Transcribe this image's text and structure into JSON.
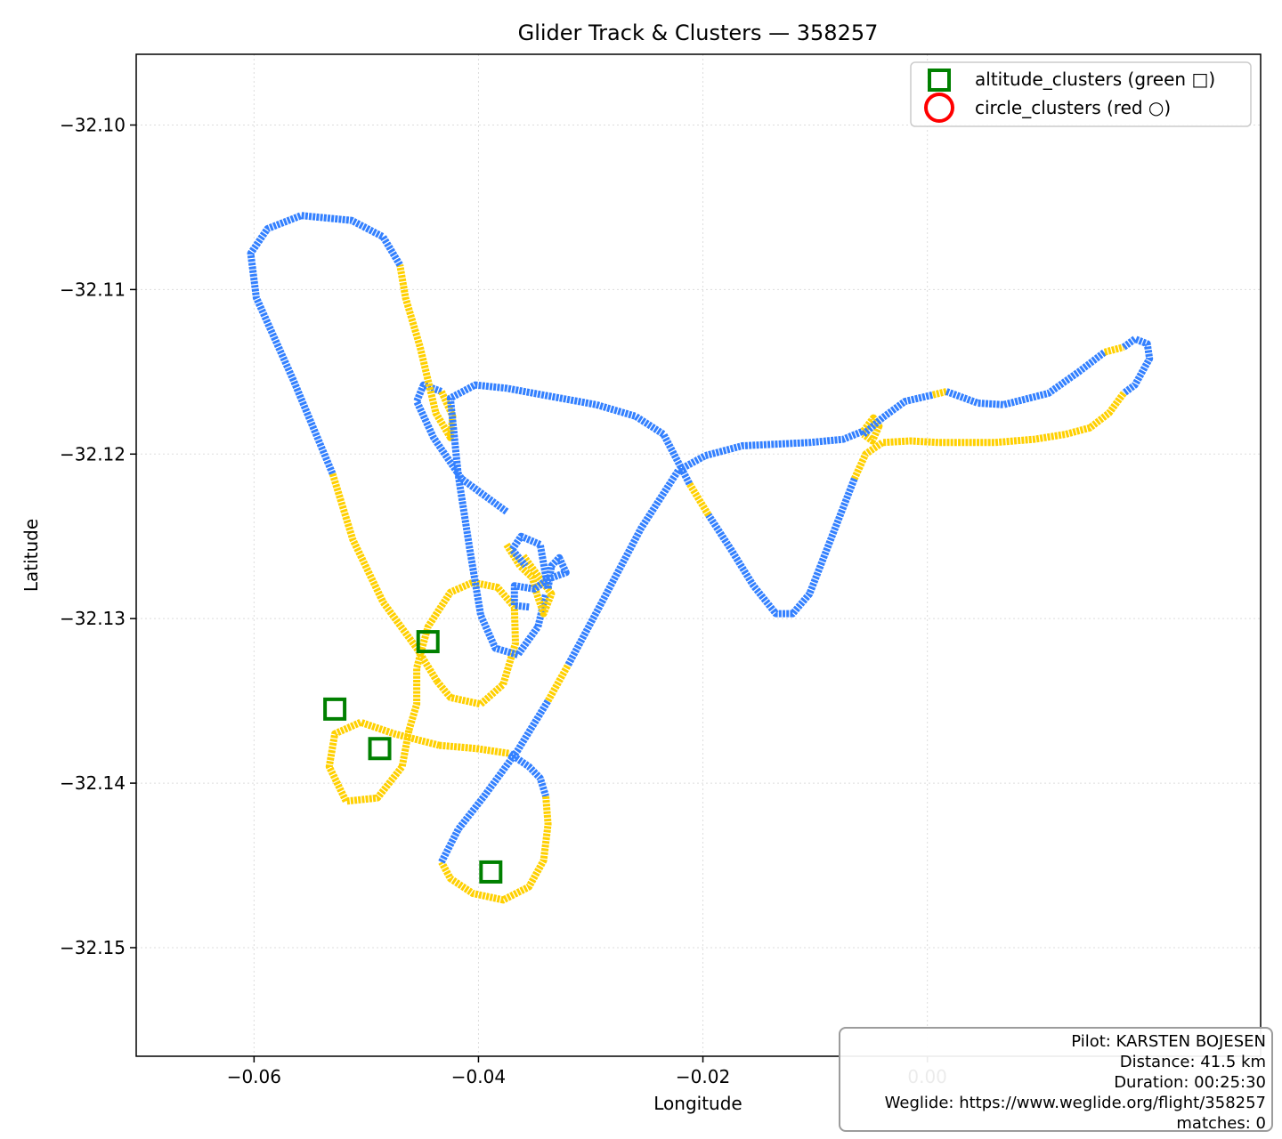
{
  "chart_data": {
    "type": "scatter",
    "title": "Glider Track & Clusters — 358257",
    "xlabel": "Longitude",
    "ylabel": "Latitude",
    "xlim": [
      -0.0705,
      0.0297
    ],
    "ylim": [
      -32.1566,
      -32.0957
    ],
    "xticks": [
      -0.06,
      -0.04,
      -0.02,
      0.0
    ],
    "xtick_labels": [
      "−0.06",
      "−0.04",
      "−0.02",
      "0.00"
    ],
    "yticks": [
      -32.15,
      -32.14,
      -32.13,
      -32.12,
      -32.11,
      -32.1
    ],
    "ytick_labels": [
      "−32.15",
      "−32.14",
      "−32.13",
      "−32.12",
      "−32.11",
      "−32.10"
    ],
    "grid": true,
    "legend_position": "top-right",
    "legend": [
      {
        "label": "altitude_clusters (green □)",
        "marker": "square",
        "color": "#008000"
      },
      {
        "label": "circle_clusters (red ○)",
        "marker": "circle",
        "color": "#ff0000"
      }
    ],
    "colors": {
      "climb": "#ffd000",
      "glide": "#3380ff",
      "altitude_cluster": "#008000",
      "circle_cluster": "#ff0000"
    },
    "track": {
      "segments": [
        {
          "color": "glide",
          "points": [
            [
              -0.0375,
              -32.1235
            ],
            [
              -0.0415,
              -32.1215
            ],
            [
              -0.044,
              -32.119
            ],
            [
              -0.0455,
              -32.1168
            ],
            [
              -0.0449,
              -32.1158
            ],
            [
              -0.0433,
              -32.1162
            ]
          ]
        },
        {
          "color": "climb",
          "points": [
            [
              -0.0433,
              -32.1162
            ],
            [
              -0.0423,
              -32.1177
            ],
            [
              -0.0425,
              -32.119
            ],
            [
              -0.0438,
              -32.1175
            ],
            [
              -0.0445,
              -32.1155
            ],
            [
              -0.0452,
              -32.1135
            ],
            [
              -0.0465,
              -32.1105
            ],
            [
              -0.047,
              -32.1085
            ]
          ]
        },
        {
          "color": "glide",
          "points": [
            [
              -0.047,
              -32.1085
            ],
            [
              -0.0485,
              -32.1068
            ],
            [
              -0.0513,
              -32.1058
            ],
            [
              -0.0558,
              -32.1055
            ],
            [
              -0.0588,
              -32.1063
            ],
            [
              -0.0603,
              -32.1078
            ],
            [
              -0.0598,
              -32.1105
            ],
            [
              -0.0565,
              -32.1155
            ],
            [
              -0.053,
              -32.1212
            ]
          ]
        },
        {
          "color": "climb",
          "points": [
            [
              -0.053,
              -32.1212
            ],
            [
              -0.0512,
              -32.1252
            ],
            [
              -0.0485,
              -32.129
            ],
            [
              -0.0455,
              -32.1318
            ],
            [
              -0.0437,
              -32.1338
            ]
          ]
        },
        {
          "color": "climb",
          "points": [
            [
              -0.0437,
              -32.1338
            ],
            [
              -0.0425,
              -32.1348
            ],
            [
              -0.0398,
              -32.1352
            ],
            [
              -0.0378,
              -32.134
            ],
            [
              -0.0367,
              -32.1315
            ],
            [
              -0.0368,
              -32.1293
            ],
            [
              -0.0383,
              -32.1281
            ],
            [
              -0.0405,
              -32.1278
            ],
            [
              -0.0425,
              -32.1284
            ],
            [
              -0.0445,
              -32.1305
            ],
            [
              -0.0455,
              -32.133
            ],
            [
              -0.0455,
              -32.1352
            ],
            [
              -0.0462,
              -32.1368
            ]
          ]
        },
        {
          "color": "climb",
          "points": [
            [
              -0.0462,
              -32.1368
            ],
            [
              -0.0468,
              -32.139
            ],
            [
              -0.049,
              -32.1409
            ],
            [
              -0.0518,
              -32.1411
            ],
            [
              -0.0533,
              -32.139
            ],
            [
              -0.0528,
              -32.137
            ],
            [
              -0.0505,
              -32.1363
            ],
            [
              -0.0475,
              -32.137
            ],
            [
              -0.0435,
              -32.1377
            ]
          ]
        },
        {
          "color": "climb",
          "points": [
            [
              -0.0435,
              -32.1377
            ],
            [
              -0.0402,
              -32.1379
            ],
            [
              -0.0372,
              -32.1382
            ]
          ]
        },
        {
          "color": "glide",
          "points": [
            [
              -0.0372,
              -32.1382
            ],
            [
              -0.0355,
              -32.139
            ],
            [
              -0.0345,
              -32.1397
            ],
            [
              -0.034,
              -32.1408
            ]
          ]
        },
        {
          "color": "climb",
          "points": [
            [
              -0.034,
              -32.1408
            ],
            [
              -0.0338,
              -32.1425
            ],
            [
              -0.0342,
              -32.1447
            ],
            [
              -0.0355,
              -32.1463
            ],
            [
              -0.0378,
              -32.1471
            ],
            [
              -0.0405,
              -32.1467
            ],
            [
              -0.0425,
              -32.1458
            ],
            [
              -0.0433,
              -32.1448
            ]
          ]
        },
        {
          "color": "glide",
          "points": [
            [
              -0.0433,
              -32.1448
            ],
            [
              -0.0418,
              -32.1428
            ],
            [
              -0.0395,
              -32.1408
            ],
            [
              -0.0365,
              -32.138
            ],
            [
              -0.0338,
              -32.135
            ]
          ]
        },
        {
          "color": "climb",
          "points": [
            [
              -0.0338,
              -32.135
            ],
            [
              -0.032,
              -32.1328
            ]
          ]
        },
        {
          "color": "glide",
          "points": [
            [
              -0.032,
              -32.1328
            ],
            [
              -0.029,
              -32.129
            ],
            [
              -0.0255,
              -32.1245
            ],
            [
              -0.0222,
              -32.121
            ],
            [
              -0.0198,
              -32.1201
            ],
            [
              -0.0165,
              -32.1195
            ],
            [
              -0.0105,
              -32.1193
            ],
            [
              -0.0075,
              -32.1191
            ],
            [
              -0.0057,
              -32.1186
            ]
          ]
        },
        {
          "color": "climb",
          "points": [
            [
              -0.0057,
              -32.1186
            ],
            [
              -0.0048,
              -32.1178
            ],
            [
              -0.0043,
              -32.1183
            ],
            [
              -0.0049,
              -32.1192
            ],
            [
              -0.0057,
              -32.1188
            ]
          ]
        },
        {
          "color": "glide",
          "points": [
            [
              -0.0057,
              -32.1188
            ],
            [
              -0.004,
              -32.1178
            ],
            [
              -0.002,
              -32.1168
            ],
            [
              0.0005,
              -32.1164
            ]
          ]
        },
        {
          "color": "climb",
          "points": [
            [
              0.0005,
              -32.1164
            ],
            [
              0.0017,
              -32.1162
            ]
          ]
        },
        {
          "color": "glide",
          "points": [
            [
              0.0017,
              -32.1162
            ],
            [
              0.0045,
              -32.1169
            ],
            [
              0.0068,
              -32.117
            ],
            [
              0.0108,
              -32.1163
            ],
            [
              0.0135,
              -32.115
            ],
            [
              0.0158,
              -32.1138
            ]
          ]
        },
        {
          "color": "climb",
          "points": [
            [
              0.0158,
              -32.1138
            ],
            [
              0.0175,
              -32.1135
            ]
          ]
        },
        {
          "color": "glide",
          "points": [
            [
              0.0175,
              -32.1135
            ],
            [
              0.0185,
              -32.113
            ],
            [
              0.0196,
              -32.1133
            ],
            [
              0.0198,
              -32.1142
            ],
            [
              0.0185,
              -32.1158
            ],
            [
              0.0175,
              -32.1163
            ]
          ]
        },
        {
          "color": "climb",
          "points": [
            [
              0.0175,
              -32.1163
            ],
            [
              0.0162,
              -32.1175
            ],
            [
              0.0145,
              -32.1184
            ],
            [
              0.0123,
              -32.1188
            ],
            [
              0.0095,
              -32.1191
            ],
            [
              0.006,
              -32.1193
            ],
            [
              0.0035,
              -32.1193
            ],
            [
              0.001,
              -32.1193
            ],
            [
              -0.0015,
              -32.1192
            ],
            [
              -0.004,
              -32.1193
            ],
            [
              -0.0055,
              -32.12
            ],
            [
              -0.0065,
              -32.1215
            ]
          ]
        },
        {
          "color": "glide",
          "points": [
            [
              -0.0065,
              -32.1215
            ],
            [
              -0.0085,
              -32.125
            ],
            [
              -0.0105,
              -32.1285
            ],
            [
              -0.012,
              -32.1297
            ],
            [
              -0.0135,
              -32.1297
            ],
            [
              -0.0155,
              -32.128
            ],
            [
              -0.0175,
              -32.1258
            ],
            [
              -0.0195,
              -32.1237
            ]
          ]
        },
        {
          "color": "climb",
          "points": [
            [
              -0.0195,
              -32.1237
            ],
            [
              -0.0212,
              -32.1218
            ]
          ]
        },
        {
          "color": "glide",
          "points": [
            [
              -0.0212,
              -32.1218
            ],
            [
              -0.0235,
              -32.1188
            ],
            [
              -0.026,
              -32.1177
            ],
            [
              -0.0295,
              -32.117
            ],
            [
              -0.0335,
              -32.1165
            ],
            [
              -0.0375,
              -32.116
            ],
            [
              -0.0403,
              -32.1158
            ],
            [
              -0.0425,
              -32.1166
            ],
            [
              -0.0418,
              -32.1213
            ],
            [
              -0.0408,
              -32.1257
            ],
            [
              -0.0398,
              -32.1298
            ],
            [
              -0.0385,
              -32.1318
            ],
            [
              -0.0365,
              -32.1322
            ],
            [
              -0.0347,
              -32.1305
            ],
            [
              -0.034,
              -32.1285
            ]
          ]
        },
        {
          "color": "climb",
          "points": [
            [
              -0.0375,
              -32.1255
            ],
            [
              -0.0363,
              -32.1268
            ],
            [
              -0.0352,
              -32.1275
            ],
            [
              -0.0348,
              -32.1285
            ],
            [
              -0.0342,
              -32.1297
            ],
            [
              -0.0335,
              -32.1285
            ],
            [
              -0.036,
              -32.1262
            ]
          ]
        },
        {
          "color": "glide",
          "points": [
            [
              -0.0355,
              -32.1293
            ],
            [
              -0.0368,
              -32.1292
            ],
            [
              -0.0368,
              -32.128
            ],
            [
              -0.035,
              -32.1282
            ],
            [
              -0.0338,
              -32.1276
            ],
            [
              -0.0322,
              -32.1272
            ],
            [
              -0.0328,
              -32.1263
            ],
            [
              -0.0335,
              -32.1268
            ],
            [
              -0.0338,
              -32.1282
            ],
            [
              -0.0345,
              -32.1255
            ],
            [
              -0.0362,
              -32.125
            ],
            [
              -0.037,
              -32.1258
            ],
            [
              -0.0358,
              -32.1268
            ]
          ]
        }
      ]
    },
    "altitude_clusters": [
      [
        -0.0445,
        -32.1314
      ],
      [
        -0.0528,
        -32.1355
      ],
      [
        -0.0488,
        -32.1379
      ],
      [
        -0.0389,
        -32.1454
      ]
    ],
    "circle_clusters": []
  },
  "info": {
    "pilot": "Pilot: KARSTEN BOJESEN",
    "distance": "Distance: 41.5 km",
    "duration": "Duration: 00:25:30",
    "weglide": "Weglide: https://www.weglide.org/flight/358257",
    "matches": "matches: 0"
  }
}
